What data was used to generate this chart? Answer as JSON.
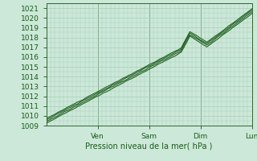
{
  "title": "",
  "xlabel": "Pression niveau de la mer( hPa )",
  "ylim": [
    1009,
    1021.5
  ],
  "xlim": [
    0,
    96
  ],
  "yticks": [
    1009,
    1010,
    1011,
    1012,
    1013,
    1014,
    1015,
    1016,
    1017,
    1018,
    1019,
    1020,
    1021
  ],
  "xtick_positions": [
    24,
    48,
    72,
    96
  ],
  "xtick_labels": [
    "Ven",
    "Sam",
    "Dim",
    "Lun"
  ],
  "bg_color": "#cce8d8",
  "grid_color": "#aaccbb",
  "line_color": "#1a5c1a",
  "figsize": [
    3.2,
    2.0
  ],
  "dpi": 100
}
